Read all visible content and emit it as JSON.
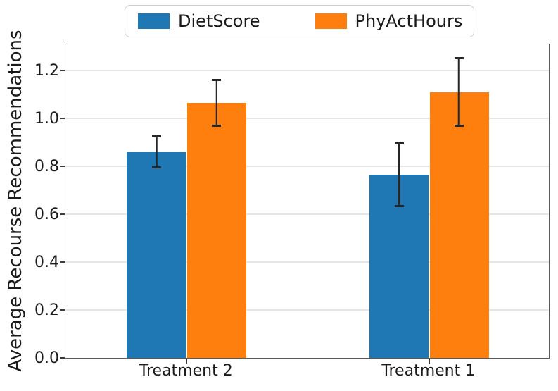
{
  "chart_data": {
    "type": "bar",
    "title": "",
    "xlabel": "",
    "ylabel": "Average Recourse Recommendations",
    "categories": [
      "Treatment 2",
      "Treatment 1"
    ],
    "series": [
      {
        "name": "DietScore",
        "color": "#1f77b4",
        "values": [
          0.86,
          0.765
        ],
        "errors": [
          0.07,
          0.135
        ]
      },
      {
        "name": "PhyActHours",
        "color": "#ff7f0e",
        "values": [
          1.065,
          1.11
        ],
        "errors": [
          0.1,
          0.145
        ]
      }
    ],
    "error_bar_color": "#262626",
    "ylim": [
      0,
      1.315
    ],
    "yticks": [
      0,
      0.2,
      0.4,
      0.6,
      0.8,
      1.0,
      1.2
    ],
    "ytick_labels": [
      "0.0",
      "0.2",
      "0.4",
      "0.6",
      "0.8",
      "1.0",
      "1.2"
    ],
    "grid": true,
    "gridline_color": "#e6e6e6",
    "legend_position": "upper center, outside plot"
  }
}
